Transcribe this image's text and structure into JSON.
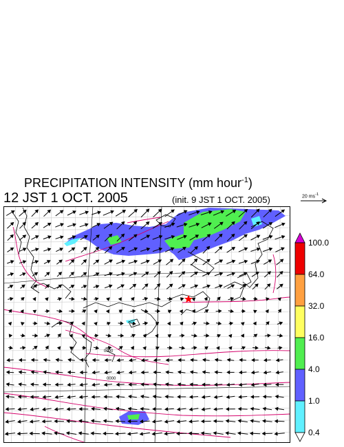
{
  "header": {
    "title_main": "PRECIPITATION INTENSITY (mm hour",
    "title_exp": "-1",
    "title_close": ")",
    "valid_time": "12 JST 1 OCT. 2005",
    "init_time": "(init. 9 JST 1 OCT. 2005)"
  },
  "vector_reference": {
    "label": "20 ms",
    "label_exp": "-1"
  },
  "colorbar": {
    "levels": [
      "100.0",
      "64.0",
      "32.0",
      "16.0",
      "4.0",
      "1.0",
      "0.4"
    ],
    "colors": [
      "#d400d4",
      "#ee0000",
      "#ffa040",
      "#ffff60",
      "#50ee50",
      "#6060ff",
      "#60f0ff"
    ]
  },
  "map": {
    "region": "Japan and surrounding seas",
    "marker": "red star",
    "station_labels": [
      "0000",
      "0000"
    ]
  }
}
